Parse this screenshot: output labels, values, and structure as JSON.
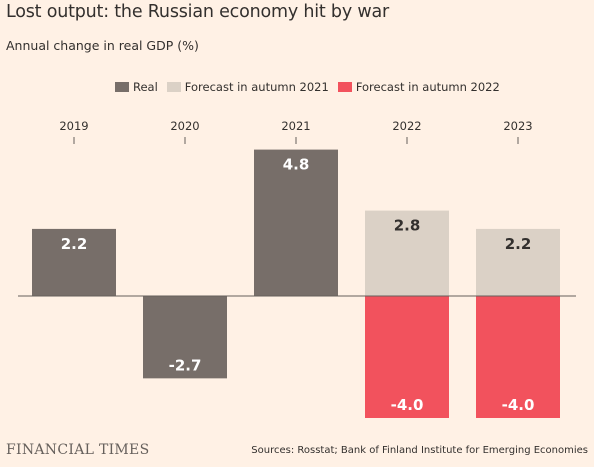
{
  "title": "Lost output: the Russian economy hit by war",
  "subtitle": "Annual change in real GDP (%)",
  "brand": "FINANCIAL TIMES",
  "source": "Sources: Rosstat; Bank of Finland Institute for Emerging Economies",
  "colors": {
    "real": "#776e69",
    "forecast_2021": "#dbd1c6",
    "forecast_2022": "#f2525d",
    "baseline": "#66605c"
  },
  "chart_data": {
    "type": "bar",
    "categories": [
      "2019",
      "2020",
      "2021",
      "2022",
      "2023"
    ],
    "series": [
      {
        "name": "Real",
        "color": "#776e69",
        "values": [
          2.2,
          -2.7,
          4.8,
          null,
          null
        ]
      },
      {
        "name": "Forecast in autumn 2021",
        "color": "#dbd1c6",
        "values": [
          null,
          null,
          null,
          2.8,
          2.2
        ]
      },
      {
        "name": "Forecast in autumn 2022",
        "color": "#f2525d",
        "values": [
          null,
          null,
          null,
          -4.0,
          -4.0
        ]
      }
    ],
    "labels": {
      "2019": "2.2",
      "2020": "-2.7",
      "2021": "4.8",
      "2022_f21": "2.8",
      "2023_f21": "2.2",
      "2022_f22": "-4.0",
      "2023_f22": "-4.0"
    },
    "legend_position": "top",
    "grid": false
  }
}
